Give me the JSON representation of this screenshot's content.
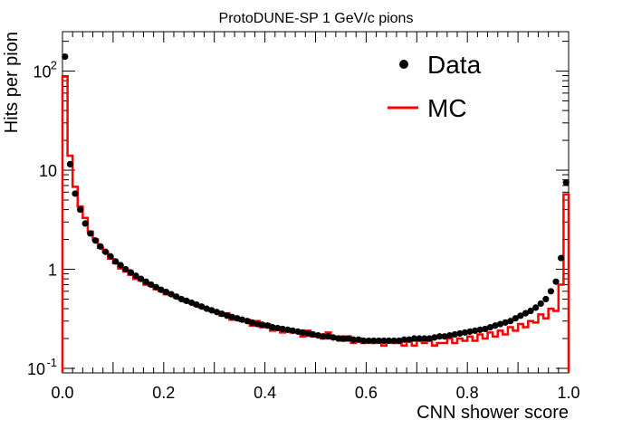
{
  "chart_data": {
    "type": "histogram",
    "title": "ProtoDUNE-SP 1 GeV/c pions",
    "xlabel": "CNN shower score",
    "ylabel": "Hits per pion",
    "xlim": [
      0.0,
      1.0
    ],
    "ylim": [
      0.09,
      250
    ],
    "yscale": "log",
    "xticks": [
      {
        "value": 0.0,
        "label": "0.0"
      },
      {
        "value": 0.2,
        "label": "0.2"
      },
      {
        "value": 0.4,
        "label": "0.4"
      },
      {
        "value": 0.6,
        "label": "0.6"
      },
      {
        "value": 0.8,
        "label": "0.8"
      },
      {
        "value": 1.0,
        "label": "1.0"
      }
    ],
    "yticks": [
      {
        "value": 0.1,
        "base": "10",
        "exp": "-1"
      },
      {
        "value": 1,
        "base": "1",
        "exp": ""
      },
      {
        "value": 10,
        "base": "10",
        "exp": ""
      },
      {
        "value": 100,
        "base": "10",
        "exp": "2"
      }
    ],
    "legend": {
      "position": "top-right"
    },
    "bins": 100,
    "series": [
      {
        "name": "Data",
        "style": "markers",
        "color": "#000000",
        "values": [
          140,
          11.5,
          5.8,
          4.0,
          2.9,
          2.3,
          1.95,
          1.7,
          1.5,
          1.35,
          1.2,
          1.1,
          1.0,
          0.93,
          0.86,
          0.8,
          0.75,
          0.7,
          0.66,
          0.62,
          0.59,
          0.56,
          0.53,
          0.5,
          0.48,
          0.46,
          0.44,
          0.42,
          0.4,
          0.385,
          0.37,
          0.355,
          0.34,
          0.33,
          0.32,
          0.31,
          0.3,
          0.29,
          0.28,
          0.275,
          0.27,
          0.26,
          0.255,
          0.25,
          0.245,
          0.24,
          0.235,
          0.23,
          0.225,
          0.22,
          0.215,
          0.21,
          0.21,
          0.205,
          0.2,
          0.2,
          0.2,
          0.195,
          0.195,
          0.19,
          0.19,
          0.19,
          0.19,
          0.19,
          0.19,
          0.19,
          0.19,
          0.195,
          0.195,
          0.2,
          0.2,
          0.2,
          0.2,
          0.205,
          0.21,
          0.21,
          0.215,
          0.22,
          0.225,
          0.23,
          0.235,
          0.24,
          0.245,
          0.25,
          0.26,
          0.27,
          0.28,
          0.29,
          0.3,
          0.32,
          0.34,
          0.36,
          0.38,
          0.41,
          0.45,
          0.5,
          0.6,
          0.75,
          1.3,
          7.5
        ]
      },
      {
        "name": "MC",
        "style": "step",
        "color": "#ff0000",
        "values": [
          88,
          14,
          6.8,
          4.3,
          3.3,
          2.4,
          2.0,
          1.65,
          1.5,
          1.28,
          1.15,
          1.02,
          0.95,
          0.88,
          0.8,
          0.77,
          0.7,
          0.68,
          0.63,
          0.6,
          0.56,
          0.55,
          0.52,
          0.5,
          0.47,
          0.46,
          0.43,
          0.41,
          0.4,
          0.38,
          0.37,
          0.34,
          0.36,
          0.31,
          0.32,
          0.3,
          0.31,
          0.27,
          0.3,
          0.26,
          0.28,
          0.24,
          0.26,
          0.23,
          0.25,
          0.23,
          0.24,
          0.21,
          0.24,
          0.21,
          0.22,
          0.2,
          0.23,
          0.2,
          0.21,
          0.19,
          0.21,
          0.18,
          0.2,
          0.18,
          0.19,
          0.18,
          0.19,
          0.17,
          0.19,
          0.18,
          0.18,
          0.17,
          0.19,
          0.17,
          0.19,
          0.18,
          0.19,
          0.17,
          0.18,
          0.18,
          0.2,
          0.18,
          0.2,
          0.19,
          0.21,
          0.19,
          0.22,
          0.2,
          0.23,
          0.21,
          0.24,
          0.22,
          0.26,
          0.24,
          0.28,
          0.26,
          0.3,
          0.29,
          0.35,
          0.32,
          0.4,
          0.38,
          0.7,
          5.7
        ]
      }
    ]
  }
}
